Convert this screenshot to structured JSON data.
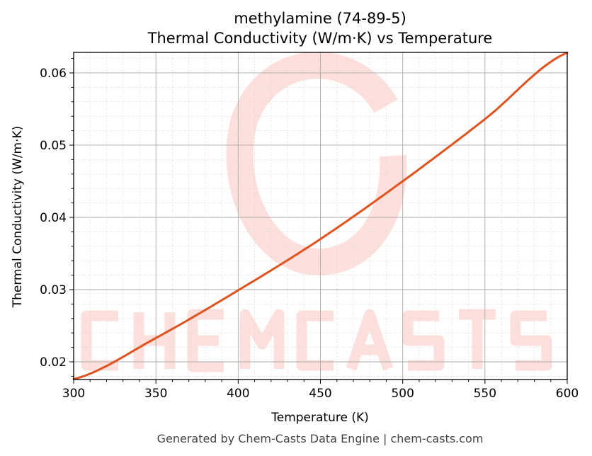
{
  "chart_data": {
    "type": "line",
    "title": "methylamine (74-89-5)",
    "subtitle": "Thermal Conductivity (W/m·K) vs Temperature",
    "xlabel": "Temperature (K)",
    "ylabel": "Thermal Conductivity (W/m·K)",
    "xlim": [
      300,
      600
    ],
    "ylim": [
      0.01755,
      0.06284
    ],
    "xticks": [
      "300",
      "350",
      "400",
      "450",
      "500",
      "550",
      "600"
    ],
    "yticks": [
      "0.02",
      "0.03",
      "0.04",
      "0.05",
      "0.06"
    ],
    "grid": true,
    "series": [
      {
        "color": "#e0531f",
        "x": [
          300,
          350,
          400,
          450,
          500,
          550,
          600
        ],
        "y": [
          0.0176,
          0.0233,
          0.0299,
          0.037,
          0.045,
          0.0536,
          0.0628
        ]
      }
    ],
    "footer": "Generated by Chem-Casts Data Engine | chem-casts.com",
    "watermark": "CHEMCASTS",
    "watermark_color": "#fdd5cf"
  }
}
